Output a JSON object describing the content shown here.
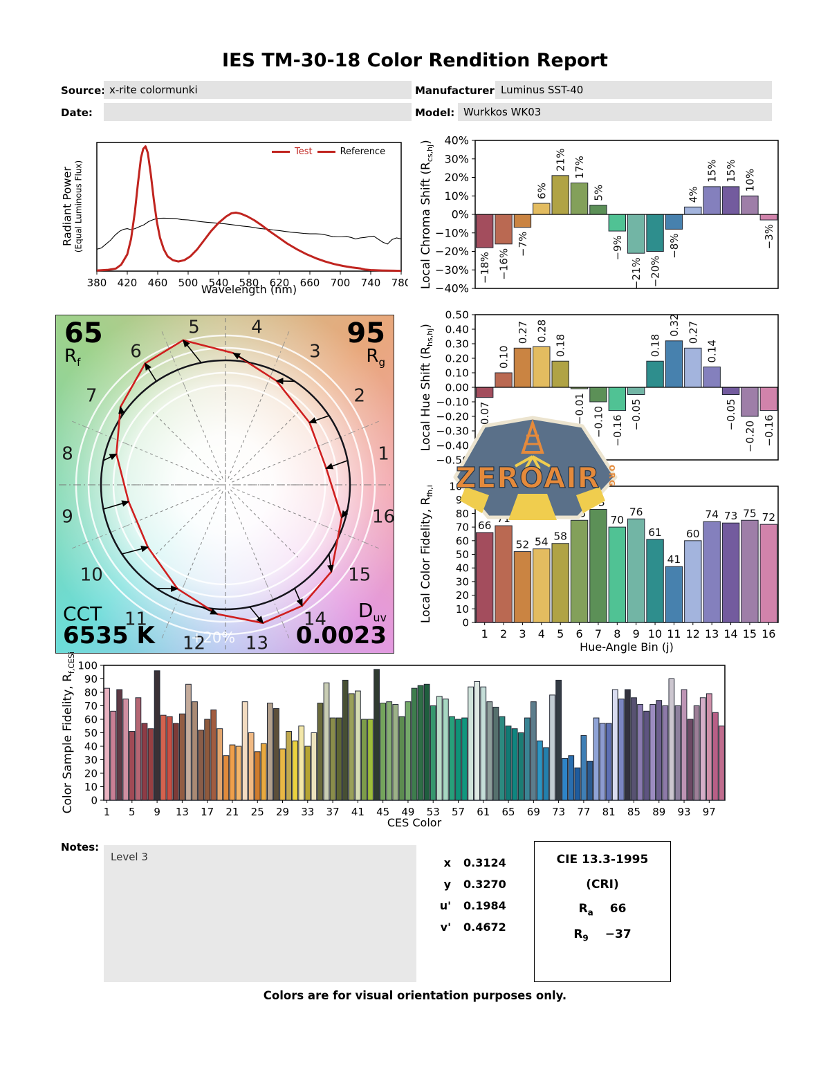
{
  "title": "IES TM-30-18 Color Rendition Report",
  "header": {
    "source_label": "Source:",
    "source_value": "x-rite colormunki",
    "manufacturer_label": "Manufacturer:",
    "manufacturer_value": "Luminus SST-40",
    "date_label": "Date:",
    "date_value": "",
    "model_label": "Model:",
    "model_value": "Wurkkos WK03"
  },
  "colors": {
    "test_red": "#c0241f",
    "reference_black": "#000000",
    "bar_stroke": "#232834",
    "box_gray": "#e3e3e3",
    "hue_bin_palette": [
      "#a34d5d",
      "#ba6952",
      "#ca8442",
      "#e3bc60",
      "#b0a345",
      "#83a05a",
      "#5c9057",
      "#50c294",
      "#72b5a5",
      "#2e8e8d",
      "#4781ae",
      "#a3b4dd",
      "#8480bd",
      "#735b9e",
      "#9e7ea8",
      "#d183ab"
    ],
    "ces_palette": [
      "#e9b3c1",
      "#c97f95",
      "#5f3a45",
      "#cf8fa1",
      "#a04a55",
      "#b56673",
      "#8e3c46",
      "#983f42",
      "#3a3136",
      "#d4624e",
      "#c94f43",
      "#7e3b38",
      "#925c43",
      "#c4ab9b",
      "#a98a74",
      "#8a5d48",
      "#8f5a3d",
      "#a15c40",
      "#e3a66e",
      "#e08a3c",
      "#ef9f4a",
      "#f3b56a",
      "#f2dbc0",
      "#f0b983",
      "#cf7c2e",
      "#e9a93f",
      "#b3a08c",
      "#5c4f3a",
      "#e8b745",
      "#c0a94f",
      "#ead23f",
      "#f3e7a9",
      "#b5a433",
      "#ece2bc",
      "#6b6b3c",
      "#c9cdb4",
      "#8a8d4a",
      "#5f6632",
      "#474f33",
      "#9aa05a",
      "#d6dcb3",
      "#7d9c4a",
      "#9ebc3a",
      "#2f3a30",
      "#74a45c",
      "#86ae72",
      "#9cb188",
      "#5c8c50",
      "#74a869",
      "#3e7d4d",
      "#2e6e46",
      "#1f5e3e",
      "#35976d",
      "#b9dcc8",
      "#a7d8c2",
      "#27a07a",
      "#0e9377",
      "#12967e",
      "#cfe3da",
      "#dfe9e4",
      "#c5ded8",
      "#8f9f9b",
      "#56706d",
      "#2c8a80",
      "#117a74",
      "#0f8680",
      "#1b7d74",
      "#3a8494",
      "#5d7d8c",
      "#2c96c3",
      "#2380ad",
      "#c3ccd4",
      "#343b44",
      "#2e84c8",
      "#2a6fb0",
      "#1f5c9e",
      "#3f7fb5",
      "#2a5a8f",
      "#8fa3d6",
      "#8d9bd0",
      "#5d6fb4",
      "#d9dcf0",
      "#7b86c2",
      "#33323e",
      "#585272",
      "#8a7ab0",
      "#5e5480",
      "#9c8cc0",
      "#6d5f8e",
      "#8d7aa8",
      "#ccc6cf",
      "#8d7f9d",
      "#bd94b4",
      "#6d4a64",
      "#9d7f97",
      "#d5aec8",
      "#ce8fa8",
      "#b85f86",
      "#c06d8e"
    ]
  },
  "chart_data": [
    {
      "id": "spd",
      "type": "line",
      "title": "",
      "xlabel": "Wavelength (nm)",
      "ylabel": "Radiant Power",
      "ylabel2": "(Equal Luminous Flux)",
      "xlim": [
        380,
        780
      ],
      "ylim": [
        0,
        1.05
      ],
      "grid": false,
      "legend_position": "top-right",
      "xticks": [
        380,
        420,
        460,
        500,
        540,
        580,
        620,
        660,
        700,
        740,
        780
      ],
      "legend": [
        "Test",
        "Reference"
      ],
      "series": [
        {
          "name": "Test",
          "points": [
            [
              380,
              0.005
            ],
            [
              395,
              0.01
            ],
            [
              405,
              0.02
            ],
            [
              412,
              0.05
            ],
            [
              420,
              0.13
            ],
            [
              425,
              0.25
            ],
            [
              430,
              0.46
            ],
            [
              434,
              0.68
            ],
            [
              438,
              0.88
            ],
            [
              441,
              0.95
            ],
            [
              444,
              0.97
            ],
            [
              447,
              0.92
            ],
            [
              451,
              0.75
            ],
            [
              455,
              0.55
            ],
            [
              459,
              0.38
            ],
            [
              463,
              0.26
            ],
            [
              468,
              0.17
            ],
            [
              473,
              0.115
            ],
            [
              480,
              0.085
            ],
            [
              487,
              0.075
            ],
            [
              495,
              0.085
            ],
            [
              503,
              0.115
            ],
            [
              512,
              0.17
            ],
            [
              521,
              0.24
            ],
            [
              530,
              0.31
            ],
            [
              540,
              0.375
            ],
            [
              550,
              0.425
            ],
            [
              557,
              0.45
            ],
            [
              563,
              0.455
            ],
            [
              570,
              0.445
            ],
            [
              578,
              0.425
            ],
            [
              587,
              0.395
            ],
            [
              597,
              0.355
            ],
            [
              607,
              0.31
            ],
            [
              618,
              0.265
            ],
            [
              630,
              0.215
            ],
            [
              643,
              0.17
            ],
            [
              656,
              0.13
            ],
            [
              668,
              0.1
            ],
            [
              680,
              0.075
            ],
            [
              692,
              0.055
            ],
            [
              704,
              0.04
            ],
            [
              716,
              0.028
            ],
            [
              727,
              0.02
            ],
            [
              733,
              0.012
            ],
            [
              740,
              0.008
            ],
            [
              755,
              0.005
            ],
            [
              770,
              0.003
            ],
            [
              780,
              0.002
            ]
          ]
        },
        {
          "name": "Reference",
          "points": [
            [
              380,
              0.17
            ],
            [
              386,
              0.18
            ],
            [
              392,
              0.21
            ],
            [
              398,
              0.24
            ],
            [
              404,
              0.28
            ],
            [
              410,
              0.31
            ],
            [
              415,
              0.325
            ],
            [
              420,
              0.33
            ],
            [
              425,
              0.322
            ],
            [
              430,
              0.33
            ],
            [
              436,
              0.345
            ],
            [
              442,
              0.36
            ],
            [
              448,
              0.385
            ],
            [
              454,
              0.4
            ],
            [
              460,
              0.41
            ],
            [
              468,
              0.412
            ],
            [
              476,
              0.41
            ],
            [
              484,
              0.408
            ],
            [
              492,
              0.4
            ],
            [
              500,
              0.398
            ],
            [
              508,
              0.392
            ],
            [
              516,
              0.385
            ],
            [
              524,
              0.38
            ],
            [
              532,
              0.376
            ],
            [
              540,
              0.372
            ],
            [
              548,
              0.368
            ],
            [
              556,
              0.362
            ],
            [
              564,
              0.356
            ],
            [
              572,
              0.35
            ],
            [
              580,
              0.345
            ],
            [
              588,
              0.337
            ],
            [
              596,
              0.33
            ],
            [
              604,
              0.326
            ],
            [
              612,
              0.32
            ],
            [
              620,
              0.315
            ],
            [
              628,
              0.308
            ],
            [
              636,
              0.302
            ],
            [
              644,
              0.298
            ],
            [
              652,
              0.293
            ],
            [
              660,
              0.29
            ],
            [
              668,
              0.29
            ],
            [
              676,
              0.287
            ],
            [
              684,
              0.277
            ],
            [
              690,
              0.268
            ],
            [
              696,
              0.266
            ],
            [
              702,
              0.266
            ],
            [
              708,
              0.27
            ],
            [
              714,
              0.262
            ],
            [
              720,
              0.25
            ],
            [
              726,
              0.258
            ],
            [
              732,
              0.262
            ],
            [
              738,
              0.268
            ],
            [
              744,
              0.272
            ],
            [
              750,
              0.248
            ],
            [
              756,
              0.225
            ],
            [
              762,
              0.21
            ],
            [
              768,
              0.245
            ],
            [
              774,
              0.258
            ],
            [
              780,
              0.25
            ]
          ]
        }
      ]
    },
    {
      "id": "chroma_shift",
      "type": "bar",
      "ylabel_parts": [
        [
          "t",
          "Local Chroma Shift (R"
        ],
        [
          "s",
          "cs,hj"
        ],
        [
          "t",
          ")"
        ]
      ],
      "categories": [
        1,
        2,
        3,
        4,
        5,
        6,
        7,
        8,
        9,
        10,
        11,
        12,
        13,
        14,
        15,
        16
      ],
      "values": [
        -18,
        -16,
        -7,
        6,
        21,
        17,
        5,
        -9,
        -21,
        -20,
        -8,
        4,
        15,
        15,
        10,
        -3
      ],
      "labels": [
        "−18%",
        "−16%",
        "−7%",
        "6%",
        "21%",
        "17%",
        "5%",
        "−9%",
        "−21%",
        "−20%",
        "−8%",
        "4%",
        "15%",
        "15%",
        "10%",
        "−3%"
      ],
      "ylim": [
        -40,
        40
      ],
      "yticks": {
        "values": [
          40,
          30,
          20,
          10,
          0,
          -10,
          -20,
          -30,
          -40
        ],
        "labels": [
          "40%",
          "30%",
          "20%",
          "10%",
          "0%",
          "−10%",
          "−20%",
          "−30%",
          "−40%"
        ]
      }
    },
    {
      "id": "hue_shift",
      "type": "bar",
      "ylabel_parts": [
        [
          "t",
          "Local Hue Shift (R"
        ],
        [
          "s",
          "hs,hj"
        ],
        [
          "t",
          ")"
        ]
      ],
      "categories": [
        1,
        2,
        3,
        4,
        5,
        6,
        7,
        8,
        9,
        10,
        11,
        12,
        13,
        14,
        15,
        16
      ],
      "values": [
        -0.07,
        0.1,
        0.27,
        0.28,
        0.18,
        -0.01,
        -0.1,
        -0.16,
        -0.05,
        0.18,
        0.32,
        0.27,
        0.14,
        -0.05,
        -0.2,
        -0.16
      ],
      "labels": [
        "−0.07",
        "0.10",
        "0.27",
        "0.28",
        "0.18",
        "−0.01",
        "−0.10",
        "−0.16",
        "−0.05",
        "0.18",
        "0.32",
        "0.27",
        "0.14",
        "−0.05",
        "−0.20",
        "−0.16"
      ],
      "ylim": [
        -0.5,
        0.5
      ],
      "yticks": {
        "values": [
          0.5,
          0.4,
          0.3,
          0.2,
          0.1,
          0,
          -0.1,
          -0.2,
          -0.3,
          -0.4,
          -0.5
        ],
        "labels": [
          "0.50",
          "0.40",
          "0.30",
          "0.20",
          "0.10",
          "0.00",
          "−0.10",
          "−0.20",
          "−0.30",
          "−0.40",
          "−0.50"
        ]
      }
    },
    {
      "id": "local_fidelity",
      "type": "bar",
      "ylabel_parts": [
        [
          "t",
          "Local Color Fidelity, R"
        ],
        [
          "s",
          "fh,i"
        ]
      ],
      "xlabel": "Hue-Angle Bin (j)",
      "categories": [
        1,
        2,
        3,
        4,
        5,
        6,
        7,
        8,
        9,
        10,
        11,
        12,
        13,
        14,
        15,
        16
      ],
      "values": [
        66,
        71,
        52,
        54,
        58,
        75,
        83,
        70,
        76,
        61,
        41,
        60,
        74,
        73,
        75,
        72
      ],
      "labels": [
        "66",
        "71",
        "52",
        "54",
        "58",
        "75",
        "83",
        "70",
        "76",
        "61",
        "41",
        "60",
        "74",
        "73",
        "75",
        "72"
      ],
      "ylim": [
        0,
        100
      ],
      "yticks": {
        "values": [
          100,
          90,
          80,
          70,
          60,
          50,
          40,
          30,
          20,
          10,
          0
        ],
        "labels": [
          "100",
          "90",
          "80",
          "70",
          "60",
          "50",
          "40",
          "30",
          "20",
          "10",
          "0"
        ]
      },
      "xticks": [
        "1",
        "2",
        "3",
        "4",
        "5",
        "6",
        "7",
        "8",
        "9",
        "10",
        "11",
        "12",
        "13",
        "14",
        "15",
        "16"
      ]
    },
    {
      "id": "ces_fidelity",
      "type": "bar",
      "ylabel_parts": [
        [
          "t",
          "Color Sample Fidelity, R"
        ],
        [
          "s",
          "f,CESi"
        ]
      ],
      "xlabel": "CES Color",
      "values": [
        83,
        66,
        82,
        75,
        51,
        76,
        57,
        53,
        96,
        63,
        62,
        57,
        64,
        86,
        73,
        52,
        60,
        67,
        53,
        33,
        41,
        40,
        73,
        50,
        36,
        42,
        72,
        68,
        38,
        51,
        44,
        55,
        40,
        50,
        72,
        87,
        61,
        61,
        89,
        79,
        81,
        60,
        60,
        97,
        72,
        73,
        71,
        62,
        73,
        83,
        85,
        86,
        70,
        77,
        75,
        62,
        60,
        61,
        84,
        88,
        84,
        73,
        69,
        62,
        55,
        53,
        50,
        61,
        73,
        44,
        39,
        78,
        89,
        31,
        33,
        24,
        48,
        29,
        61,
        57,
        57,
        82,
        75,
        82,
        76,
        71,
        66,
        71,
        74,
        70,
        90,
        70,
        82,
        60,
        70,
        76,
        79,
        65,
        55
      ],
      "ylim": [
        0,
        100
      ],
      "yticks": {
        "values": [
          100,
          90,
          80,
          70,
          60,
          50,
          40,
          30,
          20,
          10,
          0
        ],
        "labels": [
          "100",
          "90",
          "80",
          "70",
          "60",
          "50",
          "40",
          "30",
          "20",
          "10",
          "0"
        ]
      },
      "xticks": [
        "1",
        "5",
        "9",
        "13",
        "17",
        "21",
        "25",
        "29",
        "33",
        "37",
        "41",
        "45",
        "49",
        "53",
        "57",
        "61",
        "65",
        "69",
        "73",
        "77",
        "81",
        "85",
        "89",
        "93",
        "97"
      ],
      "xtick_positions": [
        1,
        5,
        9,
        13,
        17,
        21,
        25,
        29,
        33,
        37,
        41,
        45,
        49,
        53,
        57,
        61,
        65,
        69,
        73,
        77,
        81,
        85,
        89,
        93,
        97
      ]
    },
    {
      "id": "color_vector_graphic",
      "type": "radar",
      "rf": "65",
      "rg": "95",
      "cct_label": "CCT",
      "cct": "6535 K",
      "duv": "0.0023",
      "ring_label": "+20%",
      "bin_numbers": [
        "1",
        "2",
        "3",
        "4",
        "5",
        "6",
        "7",
        "8",
        "9",
        "10",
        "11",
        "12",
        "13",
        "14",
        "15",
        "16"
      ],
      "chroma_shift_pct": [
        -18,
        -16,
        -7,
        6,
        21,
        17,
        5,
        -9,
        -21,
        -20,
        -8,
        4,
        15,
        15,
        10,
        -3
      ],
      "hue_shift": [
        -0.07,
        0.1,
        0.27,
        0.28,
        0.18,
        -0.01,
        -0.1,
        -0.16,
        -0.05,
        0.18,
        0.32,
        0.27,
        0.14,
        -0.05,
        -0.2,
        -0.16
      ]
    }
  ],
  "cvg_labels": {
    "rf_main": "R",
    "rf_sub": "f",
    "rg_main": "R",
    "rg_sub": "g",
    "duv_main": "D",
    "duv_sub": "uv"
  },
  "notes": {
    "label": "Notes:",
    "value": "Level 3"
  },
  "chromaticity": {
    "rows": [
      {
        "k": "x",
        "v": "0.3124"
      },
      {
        "k": "y",
        "v": "0.3270"
      },
      {
        "k": "u'",
        "v": "0.1984"
      },
      {
        "k": "v'",
        "v": "0.4672"
      }
    ]
  },
  "cri": {
    "title": "CIE 13.3-1995",
    "subtitle": "(CRI)",
    "ra_main": "R",
    "ra_sub": "a",
    "ra_value": "66",
    "r9_main": "R",
    "r9_sub": "9",
    "r9_value": "−37"
  },
  "footer": "Colors are for visual orientation purposes only.",
  "watermark": {
    "main": "ZEROAIR",
    "tld": "ORG"
  }
}
